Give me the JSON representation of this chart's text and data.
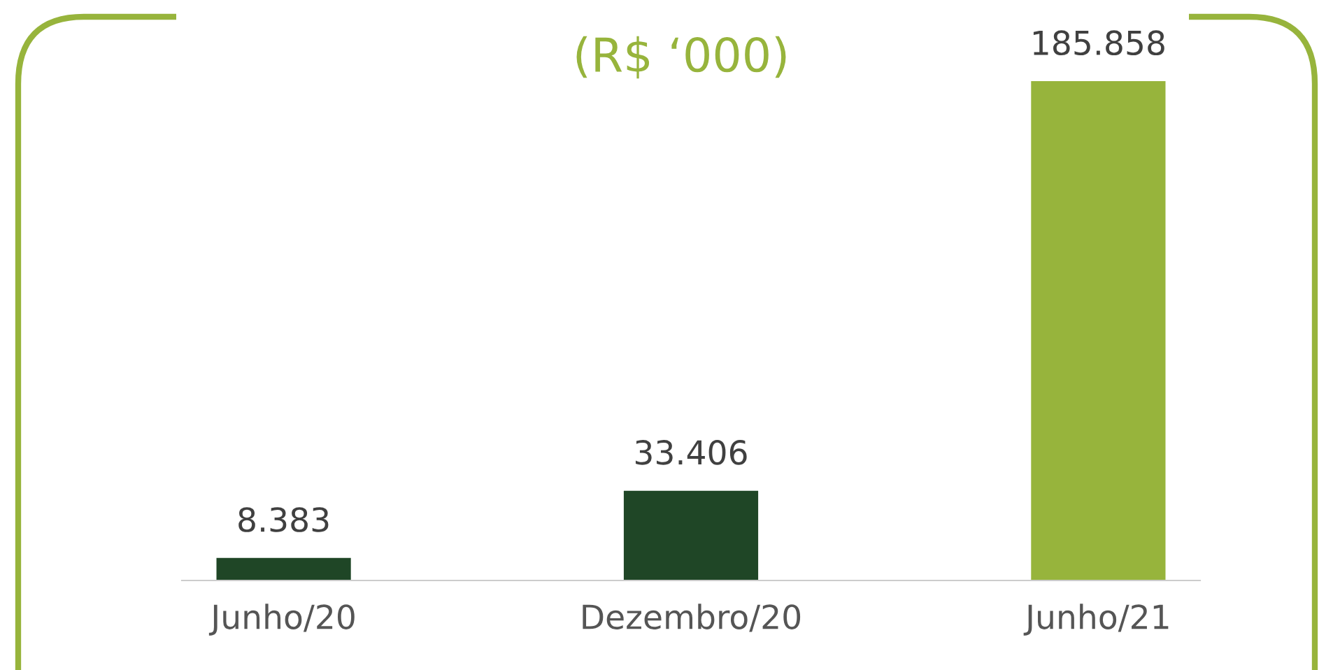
{
  "chart_data": {
    "type": "bar",
    "title": "(R$ ‘000)",
    "categories": [
      "Junho/20",
      "Dezembro/20",
      "Junho/21"
    ],
    "values": [
      8383,
      33406,
      185858
    ],
    "value_labels": [
      "8.383",
      "33.406",
      "185.858"
    ],
    "colors": [
      "#1f4626",
      "#1f4626",
      "#97b43c"
    ],
    "grid": false,
    "legend": false
  }
}
